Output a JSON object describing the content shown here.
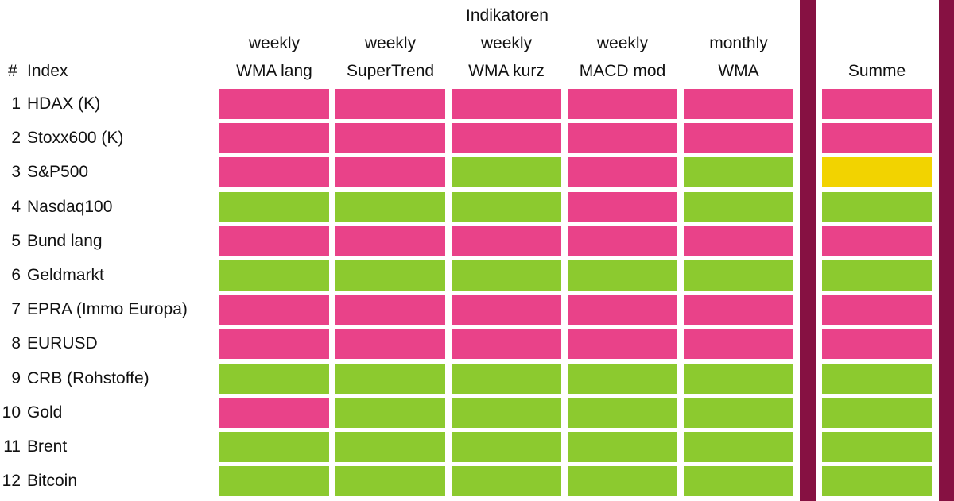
{
  "header": {
    "group_label": "Indikatoren",
    "number_label": "#",
    "index_label": "Index",
    "sum_label": "Summe"
  },
  "colors": {
    "negative": "#e94289",
    "positive": "#8cca2f",
    "neutral": "#f2d300",
    "divider": "#861142"
  },
  "chart_data": {
    "type": "table",
    "columns": [
      {
        "line1": "weekly",
        "line2": "WMA lang"
      },
      {
        "line1": "weekly",
        "line2": "SuperTrend"
      },
      {
        "line1": "weekly",
        "line2": "WMA kurz"
      },
      {
        "line1": "weekly",
        "line2": "MACD mod"
      },
      {
        "line1": "monthly",
        "line2": "WMA"
      }
    ],
    "rows": [
      {
        "num": "1",
        "name": "HDAX (K)",
        "signals": [
          "negative",
          "negative",
          "negative",
          "negative",
          "negative"
        ],
        "sum": "negative"
      },
      {
        "num": "2",
        "name": "Stoxx600 (K)",
        "signals": [
          "negative",
          "negative",
          "negative",
          "negative",
          "negative"
        ],
        "sum": "negative"
      },
      {
        "num": "3",
        "name": "S&P500",
        "signals": [
          "negative",
          "negative",
          "positive",
          "negative",
          "positive"
        ],
        "sum": "neutral"
      },
      {
        "num": "4",
        "name": "Nasdaq100",
        "signals": [
          "positive",
          "positive",
          "positive",
          "negative",
          "positive"
        ],
        "sum": "positive"
      },
      {
        "num": "5",
        "name": "Bund lang",
        "signals": [
          "negative",
          "negative",
          "negative",
          "negative",
          "negative"
        ],
        "sum": "negative"
      },
      {
        "num": "6",
        "name": "Geldmarkt",
        "signals": [
          "positive",
          "positive",
          "positive",
          "positive",
          "positive"
        ],
        "sum": "positive"
      },
      {
        "num": "7",
        "name": "EPRA (Immo Europa)",
        "signals": [
          "negative",
          "negative",
          "negative",
          "negative",
          "negative"
        ],
        "sum": "negative"
      },
      {
        "num": "8",
        "name": "EURUSD",
        "signals": [
          "negative",
          "negative",
          "negative",
          "negative",
          "negative"
        ],
        "sum": "negative"
      },
      {
        "num": "9",
        "name": "CRB (Rohstoffe)",
        "signals": [
          "positive",
          "positive",
          "positive",
          "positive",
          "positive"
        ],
        "sum": "positive"
      },
      {
        "num": "10",
        "name": "Gold",
        "signals": [
          "negative",
          "positive",
          "positive",
          "positive",
          "positive"
        ],
        "sum": "positive"
      },
      {
        "num": "11",
        "name": "Brent",
        "signals": [
          "positive",
          "positive",
          "positive",
          "positive",
          "positive"
        ],
        "sum": "positive"
      },
      {
        "num": "12",
        "name": "Bitcoin",
        "signals": [
          "positive",
          "positive",
          "positive",
          "positive",
          "positive"
        ],
        "sum": "positive"
      }
    ]
  }
}
